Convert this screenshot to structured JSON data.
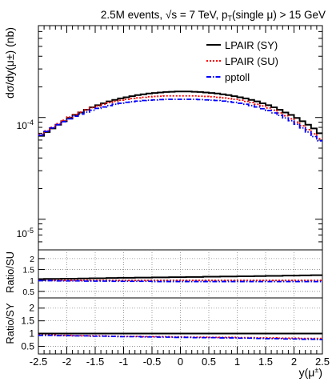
{
  "title_parts": {
    "pre": "2.5M events, ",
    "sqrt": "√",
    "s_eq": "s = 7 TeV, p",
    "T": "T",
    "post": "(single μ) > 15 GeV"
  },
  "legend": [
    {
      "label": "LPAIR (SY)",
      "color": "#000000",
      "dash": ""
    },
    {
      "label": "LPAIR (SU)",
      "color": "#ff0000",
      "dash": "2,2"
    },
    {
      "label": "pptoll",
      "color": "#0000ff",
      "dash": "6,2,1.5,2"
    }
  ],
  "y_axis_label_main": "dσ/dy(μ±) (nb)",
  "y_axis_label_ratio_su": "Ratio/SU",
  "y_axis_label_ratio_sy": "Ratio/SY",
  "x_axis_label": "y(μ±)",
  "chart_data": [
    {
      "type": "line",
      "subtype": "step-histogram",
      "title": "2.5M events, √s = 7 TeV, pT(single μ) > 15 GeV",
      "xlabel": "y(μ±)",
      "ylabel": "dσ/dy(μ±) (nb)",
      "xlim": [
        -2.5,
        2.5
      ],
      "ylim": [
        5e-06,
        0.0008
      ],
      "yscale": "log",
      "y_ticks": [
        "10^-5",
        "10^-4"
      ],
      "grid": false,
      "legend_position": "top-right",
      "x_edges": [
        -2.5,
        -2.4,
        -2.3,
        -2.2,
        -2.1,
        -2.0,
        -1.9,
        -1.8,
        -1.7,
        -1.6,
        -1.5,
        -1.4,
        -1.3,
        -1.2,
        -1.1,
        -1.0,
        -0.9,
        -0.8,
        -0.7,
        -0.6,
        -0.5,
        -0.4,
        -0.3,
        -0.2,
        -0.1,
        0.0,
        0.1,
        0.2,
        0.3,
        0.4,
        0.5,
        0.6,
        0.7,
        0.8,
        0.9,
        1.0,
        1.1,
        1.2,
        1.3,
        1.4,
        1.5,
        1.6,
        1.7,
        1.8,
        1.9,
        2.0,
        2.1,
        2.2,
        2.3,
        2.4,
        2.5
      ],
      "series": [
        {
          "name": "LPAIR (SY)",
          "values": [
            6.6e-05,
            7.2e-05,
            7.8e-05,
            8.5e-05,
            9.2e-05,
            9.9e-05,
            0.000106,
            0.000112,
            0.000119,
            0.000126,
            0.000132,
            0.000138,
            0.000144,
            0.000149,
            0.000154,
            0.000158,
            0.000162,
            0.000166,
            0.000169,
            0.000172,
            0.000174,
            0.000176,
            0.000178,
            0.000179,
            0.00018,
            0.00018,
            0.00018,
            0.000179,
            0.000178,
            0.000176,
            0.000174,
            0.000172,
            0.000169,
            0.000166,
            0.000162,
            0.000158,
            0.000154,
            0.000149,
            0.000144,
            0.000138,
            0.000132,
            0.000126,
            0.000119,
            0.000112,
            0.000106,
            9.9e-05,
            9.2e-05,
            8.5e-05,
            7.8e-05,
            7e-05
          ]
        },
        {
          "name": "LPAIR (SU)",
          "values": [
            6.8e-05,
            7.4e-05,
            8e-05,
            8.7e-05,
            9.4e-05,
            0.000101,
            0.000107,
            0.000113,
            0.000119,
            0.000125,
            0.00013,
            0.000135,
            0.00014,
            0.000144,
            0.000148,
            0.000151,
            0.000154,
            0.000156,
            0.000158,
            0.00016,
            0.000161,
            0.000162,
            0.000163,
            0.000163,
            0.000163,
            0.000163,
            0.000163,
            0.000163,
            0.000162,
            0.000161,
            0.00016,
            0.000158,
            0.000156,
            0.000154,
            0.000151,
            0.000148,
            0.000144,
            0.00014,
            0.000135,
            0.00013,
            0.000124,
            0.000118,
            0.000111,
            0.000104,
            9.7e-05,
            9e-05,
            8.3e-05,
            7.6e-05,
            6.9e-05,
            6.2e-05
          ]
        },
        {
          "name": "pptoll",
          "values": [
            6.7e-05,
            7.3e-05,
            7.9e-05,
            8.5e-05,
            9.1e-05,
            9.7e-05,
            0.000103,
            0.000108,
            0.000113,
            0.000118,
            0.000123,
            0.000127,
            0.000131,
            0.000135,
            0.000138,
            0.000141,
            0.000143,
            0.000145,
            0.000147,
            0.000148,
            0.000149,
            0.00015,
            0.000151,
            0.000151,
            0.000151,
            0.000151,
            0.000151,
            0.000151,
            0.00015,
            0.000149,
            0.000148,
            0.000147,
            0.000145,
            0.000143,
            0.000141,
            0.000138,
            0.000135,
            0.000131,
            0.000127,
            0.000122,
            0.000117,
            0.000111,
            0.000105,
            9.9e-05,
            9.3e-05,
            8.6e-05,
            7.9e-05,
            7.2e-05,
            6.5e-05,
            5.9e-05
          ]
        }
      ]
    },
    {
      "type": "line",
      "subtype": "step-histogram",
      "ylabel": "Ratio/SU",
      "xlim": [
        -2.5,
        2.5
      ],
      "ylim": [
        0.2,
        2.4
      ],
      "y_ticks": [
        "0.5",
        "1",
        "1.5",
        "2"
      ],
      "grid": true,
      "series": [
        {
          "name": "LPAIR (SY)",
          "values": [
            1.06,
            1.07,
            1.07,
            1.07,
            1.08,
            1.08,
            1.08,
            1.09,
            1.09,
            1.1,
            1.1,
            1.1,
            1.11,
            1.11,
            1.12,
            1.12,
            1.12,
            1.13,
            1.13,
            1.13,
            1.14,
            1.14,
            1.14,
            1.15,
            1.15,
            1.15,
            1.16,
            1.16,
            1.16,
            1.17,
            1.17,
            1.17,
            1.18,
            1.18,
            1.18,
            1.19,
            1.19,
            1.19,
            1.2,
            1.2,
            1.21,
            1.21,
            1.21,
            1.22,
            1.22,
            1.22,
            1.23,
            1.23,
            1.24,
            1.24
          ]
        },
        {
          "name": "LPAIR (SU)",
          "values": [
            1.0,
            1.0,
            1.0,
            1.0,
            1.0,
            1.0,
            1.0,
            1.0,
            1.0,
            1.0,
            1.0,
            1.0,
            1.0,
            1.0,
            1.0,
            1.0,
            1.0,
            1.0,
            1.0,
            1.0,
            1.0,
            1.0,
            1.0,
            1.0,
            1.0,
            1.0,
            1.0,
            1.0,
            1.0,
            1.0,
            1.0,
            1.0,
            1.0,
            1.0,
            1.0,
            1.0,
            1.0,
            1.0,
            1.0,
            1.0,
            1.0,
            1.0,
            1.0,
            1.0,
            1.0,
            1.0,
            1.0,
            1.0,
            1.0,
            1.0
          ]
        },
        {
          "name": "pptoll",
          "values": [
            0.99,
            0.99,
            0.99,
            0.98,
            0.98,
            0.98,
            0.98,
            0.98,
            0.97,
            0.97,
            0.97,
            0.97,
            0.97,
            0.96,
            0.96,
            0.96,
            0.96,
            0.96,
            0.96,
            0.96,
            0.95,
            0.95,
            0.95,
            0.95,
            0.95,
            0.95,
            0.95,
            0.95,
            0.95,
            0.95,
            0.95,
            0.95,
            0.95,
            0.95,
            0.95,
            0.95,
            0.95,
            0.95,
            0.95,
            0.95,
            0.95,
            0.95,
            0.95,
            0.95,
            0.95,
            0.95,
            0.95,
            0.95,
            0.95,
            0.95
          ]
        }
      ]
    },
    {
      "type": "line",
      "subtype": "step-histogram",
      "ylabel": "Ratio/SY",
      "xlabel": "y(μ±)",
      "xlim": [
        -2.5,
        2.5
      ],
      "ylim": [
        0.2,
        2.4
      ],
      "y_ticks": [
        "0.5",
        "1",
        "1.5",
        "2"
      ],
      "x_ticks": [
        "-2.5",
        "-2",
        "-1.5",
        "-1",
        "-0.5",
        "0",
        "0.5",
        "1",
        "1.5",
        "2",
        "2.5"
      ],
      "grid": true,
      "series": [
        {
          "name": "LPAIR (SY)",
          "values": [
            1.0,
            1.0,
            1.0,
            1.0,
            1.0,
            1.0,
            1.0,
            1.0,
            1.0,
            1.0,
            1.0,
            1.0,
            1.0,
            1.0,
            1.0,
            1.0,
            1.0,
            1.0,
            1.0,
            1.0,
            1.0,
            1.0,
            1.0,
            1.0,
            1.0,
            1.0,
            1.0,
            1.0,
            1.0,
            1.0,
            1.0,
            1.0,
            1.0,
            1.0,
            1.0,
            1.0,
            1.0,
            1.0,
            1.0,
            1.0,
            1.0,
            1.0,
            1.0,
            1.0,
            1.0,
            1.0,
            1.0,
            1.0,
            1.0,
            1.0
          ]
        },
        {
          "name": "LPAIR (SU)",
          "values": [
            0.94,
            0.94,
            0.94,
            0.93,
            0.93,
            0.93,
            0.92,
            0.92,
            0.92,
            0.91,
            0.91,
            0.91,
            0.9,
            0.9,
            0.89,
            0.89,
            0.89,
            0.89,
            0.88,
            0.88,
            0.88,
            0.88,
            0.88,
            0.87,
            0.87,
            0.87,
            0.86,
            0.86,
            0.86,
            0.86,
            0.85,
            0.85,
            0.85,
            0.85,
            0.85,
            0.84,
            0.84,
            0.84,
            0.83,
            0.83,
            0.83,
            0.83,
            0.82,
            0.82,
            0.82,
            0.82,
            0.81,
            0.81,
            0.81,
            0.81
          ]
        },
        {
          "name": "pptoll",
          "values": [
            0.93,
            0.93,
            0.93,
            0.92,
            0.92,
            0.92,
            0.91,
            0.91,
            0.91,
            0.9,
            0.9,
            0.9,
            0.89,
            0.89,
            0.88,
            0.88,
            0.88,
            0.88,
            0.87,
            0.87,
            0.87,
            0.86,
            0.86,
            0.86,
            0.85,
            0.85,
            0.85,
            0.84,
            0.84,
            0.84,
            0.84,
            0.84,
            0.83,
            0.83,
            0.83,
            0.82,
            0.82,
            0.82,
            0.81,
            0.81,
            0.8,
            0.8,
            0.8,
            0.79,
            0.79,
            0.79,
            0.78,
            0.78,
            0.78,
            0.77
          ]
        }
      ]
    }
  ]
}
